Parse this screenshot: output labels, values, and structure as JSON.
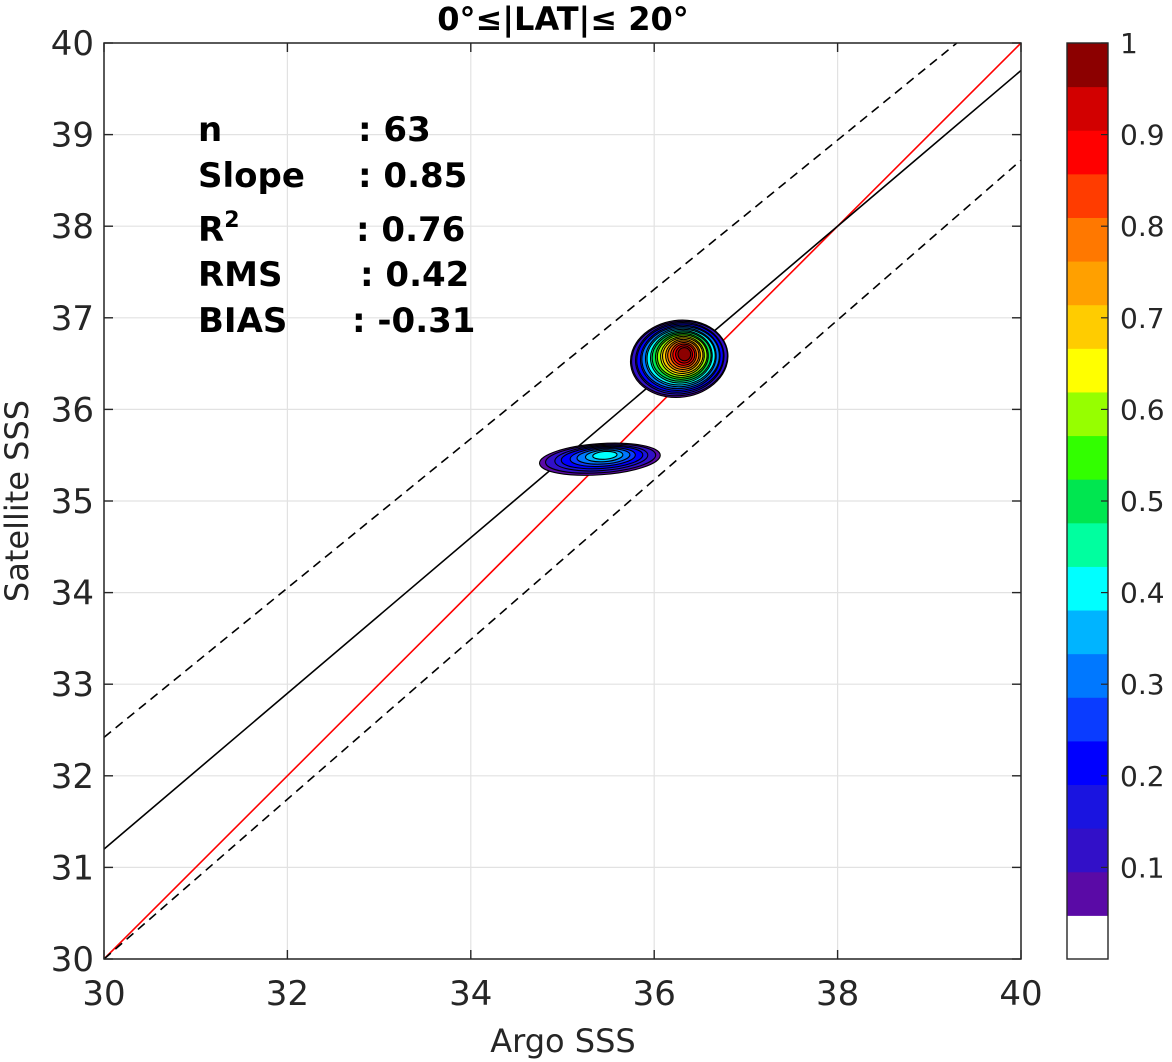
{
  "chart_data": {
    "type": "contour_scatter",
    "title": "0°≤|LAT|≤ 20°",
    "xlabel": "Argo SSS",
    "ylabel": "Satellite SSS",
    "xlim": [
      30,
      40
    ],
    "ylim": [
      30,
      40
    ],
    "xticks": [
      "30",
      "32",
      "34",
      "36",
      "38",
      "40"
    ],
    "yticks": [
      "30",
      "31",
      "32",
      "33",
      "34",
      "35",
      "36",
      "37",
      "38",
      "39",
      "40"
    ],
    "grid": true,
    "stats": [
      {
        "label": "n",
        "value": ": 63"
      },
      {
        "label": "Slope",
        "value": ": 0.85"
      },
      {
        "label": "R",
        "sup": "2",
        "value": ": 0.76"
      },
      {
        "label": "RMS",
        "value": ": 0.42"
      },
      {
        "label": "BIAS",
        "value": ": -0.31"
      }
    ],
    "lines": [
      {
        "name": "1:1",
        "color": "#ff0000",
        "style": "solid",
        "points": [
          [
            30,
            30
          ],
          [
            40,
            40
          ]
        ]
      },
      {
        "name": "fit",
        "color": "#000000",
        "style": "solid",
        "points": [
          [
            30,
            31.2
          ],
          [
            40,
            39.7
          ]
        ]
      },
      {
        "name": "upper-bound",
        "color": "#000000",
        "style": "dashed",
        "points": [
          [
            30,
            32.42
          ],
          [
            39.3,
            40
          ]
        ]
      },
      {
        "name": "lower-bound",
        "color": "#000000",
        "style": "dashed",
        "points": [
          [
            30,
            30
          ],
          [
            40,
            38.72
          ]
        ]
      }
    ],
    "density_clusters": [
      {
        "center": [
          36.27,
          36.55
        ],
        "peak": 1.0
      },
      {
        "center": [
          35.4,
          35.45
        ],
        "peak": 0.42
      }
    ],
    "colorbar": {
      "range": [
        0,
        1
      ],
      "levels": 21,
      "ticks": [
        "0.1",
        "0.2",
        "0.3",
        "0.4",
        "0.5",
        "0.6",
        "0.7",
        "0.8",
        "0.9",
        "1"
      ],
      "colors": [
        "#ffffff",
        "#5a0aa6",
        "#3210c8",
        "#1a14e0",
        "#0000ff",
        "#0a3cff",
        "#0078ff",
        "#00b4ff",
        "#00ffff",
        "#00ff9f",
        "#00e650",
        "#32ff00",
        "#96ff00",
        "#ffff00",
        "#ffcc00",
        "#ffa000",
        "#ff7800",
        "#ff3c00",
        "#ff0000",
        "#d20000",
        "#8c0000"
      ]
    }
  }
}
